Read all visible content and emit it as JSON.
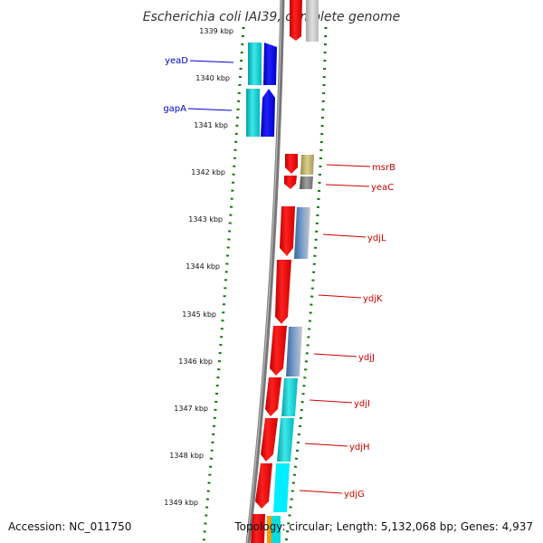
{
  "title": "Escherichia coli IAI39, complete genome",
  "footer": {
    "accession": "Accession: NC_011750",
    "topology": "Topology: circular; Length: 5,132,068 bp; Genes: 4,937"
  },
  "ticks": [
    "1339 kbp",
    "1340 kbp",
    "1341 kbp",
    "1342 kbp",
    "1343 kbp",
    "1344 kbp",
    "1345 kbp",
    "1346 kbp",
    "1347 kbp",
    "1348 kbp",
    "1349 kbp"
  ],
  "genes_left": [
    "yeaD",
    "gapA"
  ],
  "genes_right": [
    "msrB",
    "yeaC",
    "ydjL",
    "ydjK",
    "ydjJ",
    "ydjI",
    "ydjH",
    "ydjG"
  ],
  "colors": {
    "forward_cds": "#0000ee",
    "reverse_cds": "#ee0000",
    "cog_cyan": "#00cccc",
    "cog_steel": "#4a78a8",
    "cog_olive": "#b0a858",
    "cog_gray": "#888888",
    "backbone": "#888888",
    "tick_marks": "#117711",
    "left_label": "#0000cc",
    "right_label": "#cc0000"
  }
}
